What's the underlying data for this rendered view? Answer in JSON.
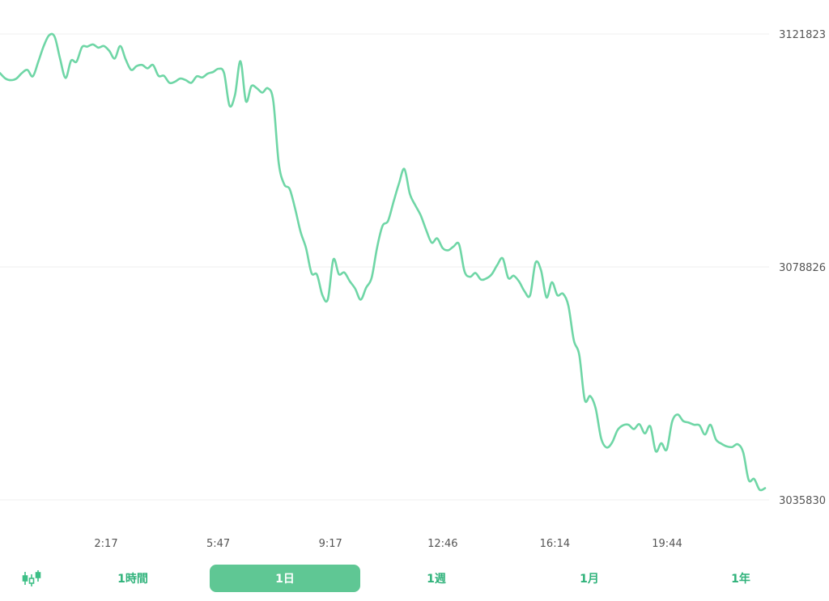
{
  "chart_data": {
    "type": "line",
    "y_ticks": [
      "3121823",
      "3078826",
      "3035830"
    ],
    "x_ticks": [
      "2:17",
      "5:47",
      "9:17",
      "12:46",
      "16:14",
      "19:44"
    ],
    "ylim": [
      3035830,
      3121823
    ],
    "grid": "horizontal",
    "color": "#6fd6a6",
    "series": [
      {
        "values": [
          3114600,
          3113600,
          3113300,
          3113600,
          3114600,
          3115200,
          3114000,
          3116700,
          3119600,
          3121600,
          3121300,
          3117200,
          3113700,
          3116900,
          3116700,
          3119400,
          3119500,
          3119900,
          3119300,
          3119600,
          3118700,
          3117300,
          3119600,
          3117100,
          3115200,
          3115900,
          3116100,
          3115500,
          3116100,
          3114100,
          3114100,
          3112800,
          3113000,
          3113600,
          3113300,
          3112800,
          3114000,
          3113800,
          3114500,
          3114800,
          3115400,
          3114600,
          3108600,
          3110600,
          3116800,
          3109400,
          3112200,
          3111800,
          3111000,
          3111800,
          3109500,
          3098000,
          3094100,
          3093200,
          3089600,
          3085300,
          3082300,
          3077700,
          3077400,
          3073600,
          3072900,
          3080200,
          3077500,
          3077800,
          3076200,
          3074800,
          3072800,
          3075000,
          3076800,
          3082400,
          3086400,
          3087300,
          3090800,
          3094200,
          3096900,
          3092300,
          3090200,
          3088300,
          3085600,
          3083300,
          3084100,
          3082300,
          3081900,
          3082600,
          3083000,
          3078000,
          3077000,
          3077700,
          3076500,
          3076700,
          3077500,
          3079200,
          3080400,
          3076800,
          3077200,
          3076100,
          3074300,
          3073600,
          3079600,
          3078200,
          3073200,
          3076000,
          3073600,
          3073900,
          3071700,
          3065300,
          3062600,
          3054300,
          3055000,
          3052700,
          3047200,
          3045500,
          3046400,
          3048700,
          3049600,
          3049700,
          3048900,
          3049800,
          3048100,
          3049400,
          3044800,
          3046300,
          3045100,
          3050300,
          3051600,
          3050400,
          3050100,
          3049700,
          3049600,
          3047900,
          3049700,
          3047000,
          3046200,
          3045700,
          3045600,
          3046100,
          3044600,
          3039500,
          3039700,
          3037700,
          3038000
        ]
      }
    ]
  },
  "controls": {
    "chart_type_icon": "candlestick-icon",
    "ranges": [
      "1時間",
      "1日",
      "1週",
      "1月",
      "1年"
    ],
    "active_range": "1日"
  }
}
